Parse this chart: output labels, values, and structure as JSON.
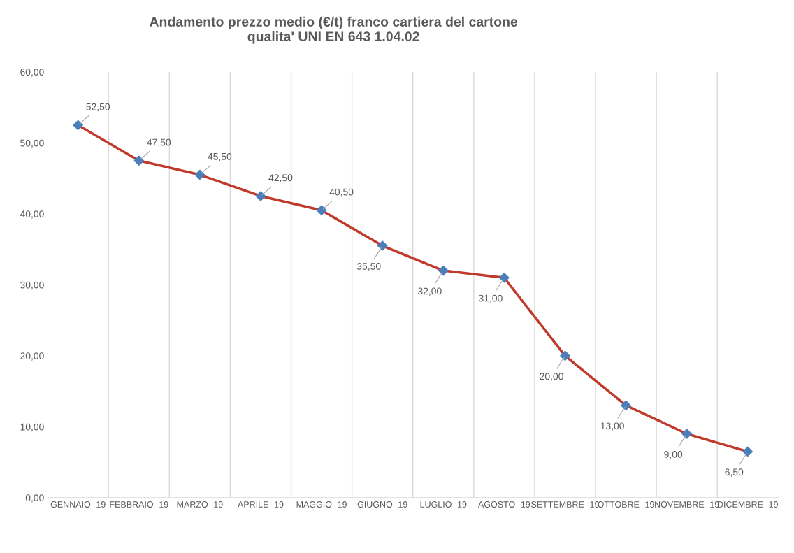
{
  "chart_data": {
    "type": "line",
    "title": "Andamento prezzo medio (€/t) franco cartiera del cartone\nqualita' UNI EN 643 1.04.02",
    "categories": [
      "GENNAIO -19",
      "FEBBRAIO -19",
      "MARZO -19",
      "APRILE -19",
      "MAGGIO -19",
      "GIUGNO -19",
      "LUGLIO -19",
      "AGOSTO -19",
      "SETTEMBRE -19",
      "OTTOBRE -19",
      "NOVEMBRE -19",
      "DICEMBRE -19"
    ],
    "series": [
      {
        "color": "#c0392b",
        "colors": [
          "#4a7ebb",
          "#4a7ebb",
          "#4a7ebb",
          "#4a7ebb",
          "#4a7ebb",
          "#4a7ebb",
          "#4a7ebb",
          "#4a7ebb",
          "#4a7ebb",
          "#4a7ebb",
          "#4a7ebb",
          "#4a7ebb"
        ],
        "values": [
          52.5,
          47.5,
          45.5,
          42.5,
          40.5,
          35.5,
          32.0,
          31.0,
          20.0,
          13.0,
          9.0,
          6.5
        ],
        "value_labels": [
          "52,50",
          "47,50",
          "45,50",
          "42,50",
          "40,50",
          "35,50",
          "32,00",
          "31,00",
          "20,00",
          "13,00",
          "9,00",
          "6,50"
        ]
      }
    ],
    "ylim": [
      0,
      60
    ],
    "yticks": [
      {
        "value": 0,
        "label": "0,00"
      },
      {
        "value": 10,
        "label": "10,00"
      },
      {
        "value": 20,
        "label": "20,00"
      },
      {
        "value": 30,
        "label": "30,00"
      },
      {
        "value": 40,
        "label": "40,00"
      },
      {
        "value": 50,
        "label": "50,00"
      },
      {
        "value": 60,
        "label": "60,00"
      }
    ],
    "grid": "x",
    "marker": "diamond",
    "line_style": "solid"
  }
}
